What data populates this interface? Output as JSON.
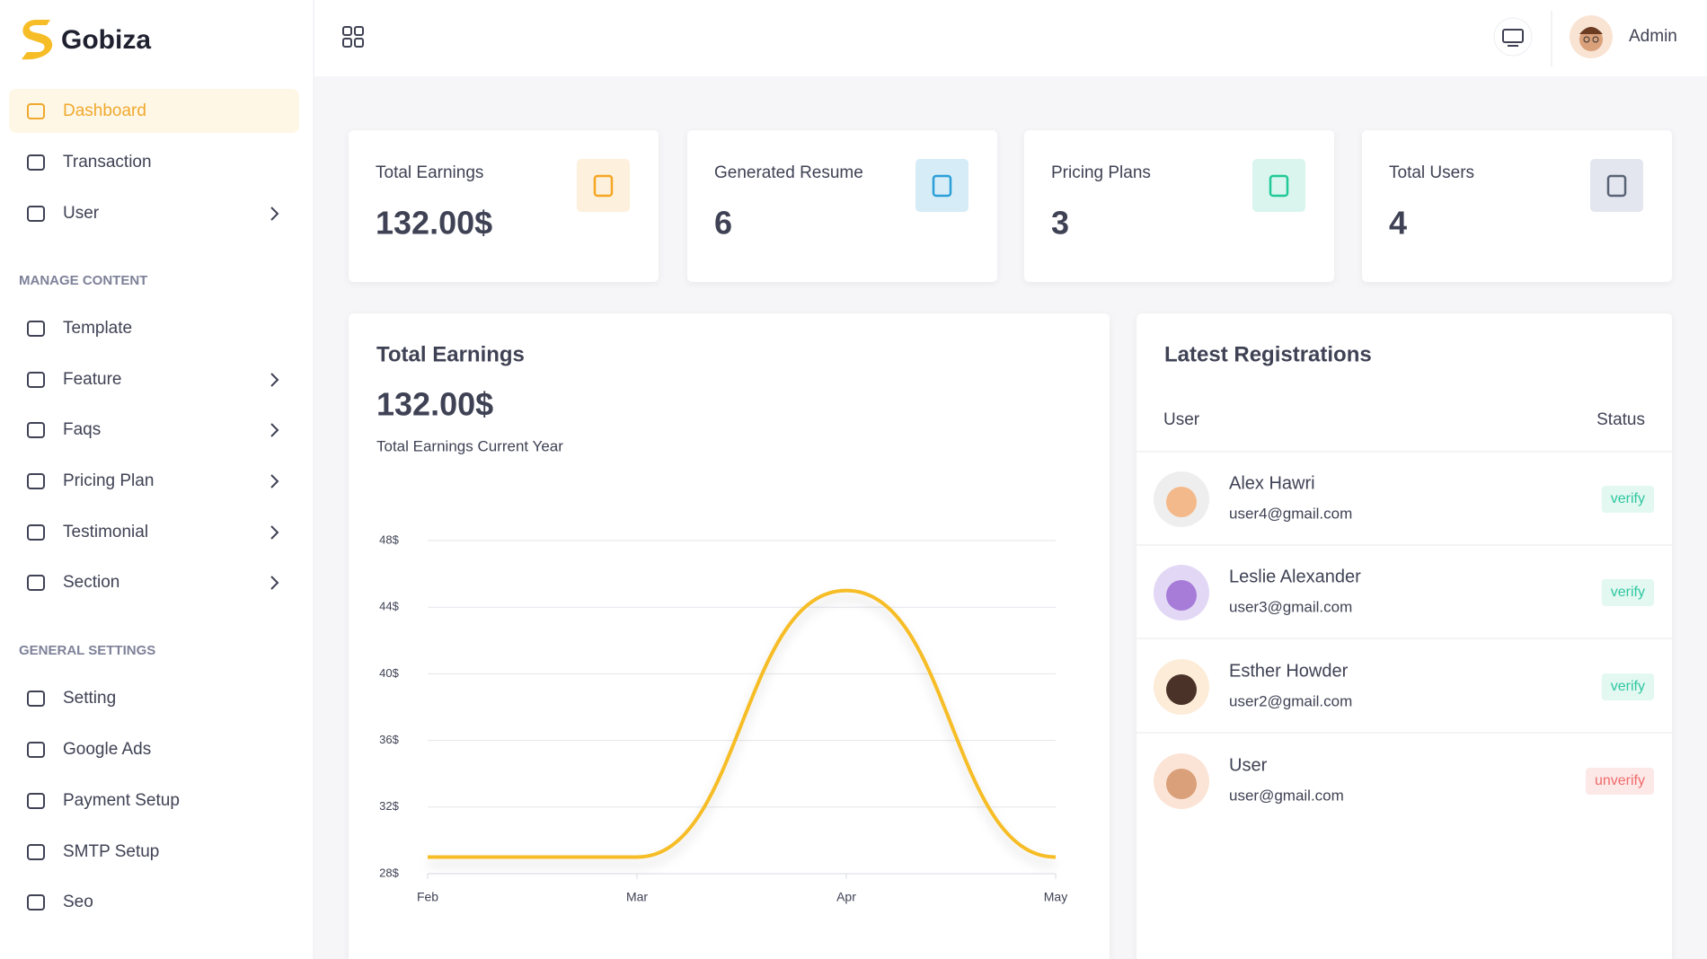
{
  "brand": "Gobiza",
  "header": {
    "user_name": "Admin"
  },
  "sidebar": {
    "items": [
      "Dashboard",
      "Transaction",
      "User"
    ],
    "manage_heading": "MANAGE CONTENT",
    "manage_items": [
      "Template",
      "Feature",
      "Faqs",
      "Pricing Plan",
      "Testimonial",
      "Section"
    ],
    "settings_heading": "GENERAL SETTINGS",
    "settings_items": [
      "Setting",
      "Google Ads",
      "Payment Setup",
      "SMTP Setup",
      "Seo"
    ]
  },
  "stats": [
    {
      "label": "Total Earnings",
      "value": "132.00$"
    },
    {
      "label": "Generated Resume",
      "value": 6
    },
    {
      "label": "Pricing Plans",
      "value": 3
    },
    {
      "label": "Total Users",
      "value": 4
    }
  ],
  "chart_data": {
    "type": "line",
    "title": "Total Earnings",
    "total": "132.00$",
    "subtitle": "Total Earnings Current Year",
    "categories": [
      "Feb",
      "Mar",
      "Apr",
      "May"
    ],
    "values": [
      29,
      29,
      45,
      29
    ],
    "color": "#f6bd27",
    "ylim": [
      28,
      48
    ],
    "yticks": [
      {
        "value": 28,
        "label": "28$"
      },
      {
        "value": 32,
        "label": "32$"
      },
      {
        "value": 36,
        "label": "36$"
      },
      {
        "value": 40,
        "label": "40$"
      },
      {
        "value": 44,
        "label": "44$"
      },
      {
        "value": 48,
        "label": "48$"
      }
    ],
    "grid": true
  },
  "registrations": {
    "title": "Latest Registrations",
    "columns": [
      "User",
      "Status"
    ],
    "rows": [
      {
        "name": "Alex Hawri",
        "email": "user4@gmail.com",
        "status": "verify"
      },
      {
        "name": "Leslie Alexander",
        "email": "user3@gmail.com",
        "status": "verify"
      },
      {
        "name": "Esther Howder",
        "email": "user2@gmail.com",
        "status": "verify"
      },
      {
        "name": "User",
        "email": "user@gmail.com",
        "status": "unverify"
      }
    ]
  }
}
